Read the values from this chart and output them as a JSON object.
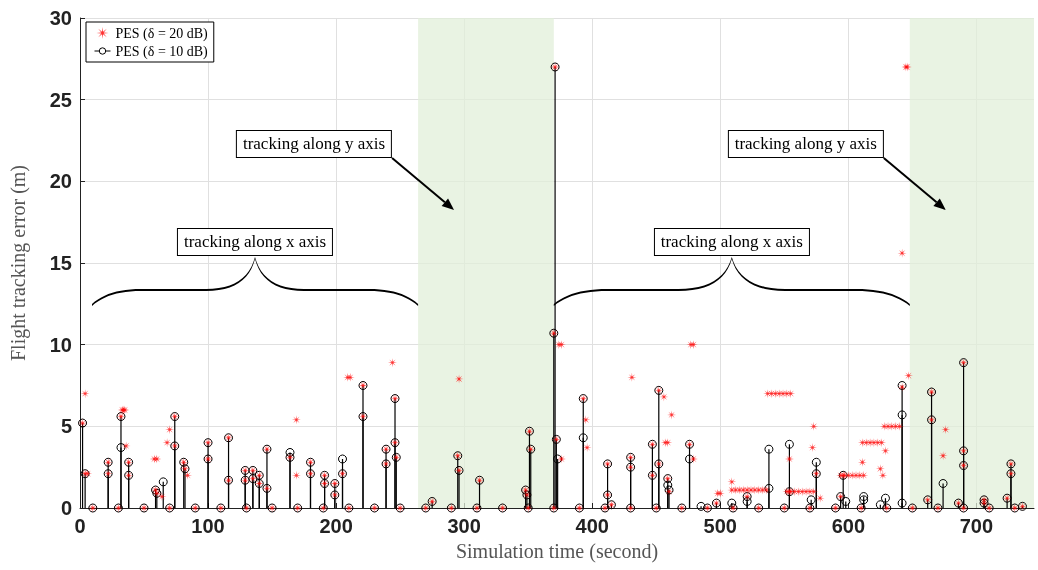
{
  "chart_data": {
    "type": "scatter",
    "xlabel": "Simulation time (second)",
    "ylabel": "Flight tracking error (m)",
    "xlim": [
      0,
      745
    ],
    "xticks": [
      0,
      100,
      200,
      300,
      400,
      500,
      600,
      700
    ],
    "ylim": [
      0,
      30
    ],
    "yticks": [
      0,
      5,
      10,
      15,
      20,
      25,
      30
    ],
    "grid": true,
    "legend": "top left",
    "series": [
      {
        "name": "PES (δ = 20 dB)",
        "marker": "star",
        "color": "#ff0000",
        "x": [
          2,
          4,
          22,
          22,
          32,
          38,
          38,
          59,
          60,
          74,
          74,
          81,
          82,
          100,
          100,
          116,
          116,
          129,
          129,
          135,
          135,
          140,
          140,
          146,
          146,
          164,
          180,
          180,
          191,
          191,
          199,
          199,
          205,
          221,
          221,
          239,
          239,
          246,
          246,
          247,
          275,
          295,
          296,
          312,
          348,
          349,
          351,
          352,
          370,
          371,
          372,
          393,
          412,
          412,
          415,
          430,
          430,
          447,
          447,
          452,
          452,
          459,
          476,
          497,
          521,
          554,
          575,
          596,
          662,
          665,
          665,
          686,
          690,
          690,
          690,
          706,
          706,
          724,
          727,
          727,
          736,
          4,
          6,
          33,
          34,
          35,
          36,
          58,
          60,
          64,
          68,
          70,
          84,
          169,
          169,
          209,
          211,
          244,
          296,
          374,
          376,
          376,
          395,
          396,
          431,
          456,
          462,
          457,
          459,
          460,
          477,
          479,
          479,
          498,
          500,
          509,
          509,
          512,
          515,
          518,
          521,
          524,
          527,
          530,
          533,
          536,
          537,
          540,
          543,
          546,
          549,
          552,
          555,
          554,
          552,
          555,
          558,
          561,
          564,
          567,
          570,
          573,
          573,
          572,
          578,
          594,
          597,
          600,
          603,
          606,
          609,
          612,
          594,
          611,
          611,
          614,
          617,
          620,
          623,
          626,
          629,
          625,
          627,
          628,
          631,
          634,
          637,
          640,
          642,
          647,
          645,
          646,
          642,
          676,
          674,
          10,
          30,
          50,
          70,
          90,
          110,
          130,
          150,
          170,
          190,
          210,
          230,
          250,
          270,
          290,
          310,
          330,
          350,
          370,
          390,
          410,
          430,
          450,
          470,
          490,
          510,
          530,
          550,
          570,
          590,
          610,
          630,
          650,
          670,
          690,
          710,
          730
        ],
        "values": [
          5.2,
          2.1,
          2.8,
          2.1,
          5.6,
          2.8,
          2.0,
          1.1,
          0.9,
          5.6,
          3.8,
          2.8,
          2.4,
          4.0,
          3.0,
          4.3,
          1.7,
          2.3,
          1.7,
          2.3,
          1.8,
          2.0,
          1.5,
          3.6,
          1.2,
          3.1,
          2.8,
          2.1,
          2.0,
          1.5,
          1.5,
          0.8,
          2.1,
          7.5,
          5.6,
          3.6,
          2.7,
          6.7,
          4.0,
          3.1,
          0.4,
          3.2,
          2.3,
          1.7,
          1.1,
          0.8,
          4.7,
          3.6,
          10.7,
          27.0,
          4.2,
          6.7,
          2.7,
          0.8,
          0.2,
          3.1,
          2.5,
          3.9,
          2.0,
          7.2,
          2.7,
          1.8,
          3.9,
          0.3,
          0.7,
          1.0,
          2.1,
          2.0,
          0.5,
          7.1,
          5.4,
          0.3,
          8.9,
          3.5,
          2.6,
          0.5,
          0.3,
          0.6,
          2.7,
          2.1,
          0.1,
          7.0,
          2.1,
          6.0,
          6.0,
          6.0,
          3.8,
          3.0,
          3.0,
          0.7,
          4.0,
          4.8,
          2.0,
          5.4,
          2.0,
          8.0,
          8.0,
          8.9,
          7.9,
          10.0,
          10.0,
          3.0,
          5.4,
          3.7,
          8.0,
          6.8,
          5.7,
          4.0,
          4.0,
          1.0,
          10.0,
          10.0,
          3.0,
          0.9,
          0.9,
          1.6,
          1.1,
          1.1,
          1.1,
          1.1,
          1.1,
          1.1,
          1.1,
          1.1,
          1.1,
          1.1,
          7.0,
          7.0,
          7.0,
          7.0,
          7.0,
          7.0,
          7.0,
          3.0,
          1.0,
          1.0,
          1.0,
          1.0,
          1.0,
          1.0,
          1.0,
          1.0,
          5.0,
          3.7,
          0.6,
          2.0,
          2.0,
          2.0,
          2.0,
          2.0,
          2.0,
          2.0,
          0.7,
          2.8,
          4.0,
          4.0,
          4.0,
          4.0,
          4.0,
          4.0,
          3.5,
          2.4,
          2.0,
          5.0,
          5.0,
          5.0,
          5.0,
          5.0,
          7.4,
          8.1,
          27.0,
          27.0,
          15.6,
          4.8,
          3.2,
          0,
          0,
          0,
          0,
          0,
          0,
          0,
          0,
          0,
          0,
          0,
          0,
          0,
          0,
          0,
          0,
          0,
          0,
          0,
          0,
          0,
          0,
          0,
          0,
          0,
          0,
          0,
          0,
          0,
          0,
          0,
          0,
          0,
          0,
          0,
          0,
          0
        ]
      },
      {
        "name": "PES (δ = 10 dB)",
        "type": "lollipop",
        "marker": "circle",
        "color": "#000000",
        "x": [
          2,
          4,
          22,
          22,
          32,
          32,
          38,
          38,
          59,
          60,
          65,
          74,
          74,
          81,
          82,
          100,
          100,
          116,
          116,
          129,
          129,
          135,
          135,
          140,
          140,
          146,
          146,
          164,
          164,
          180,
          180,
          191,
          191,
          199,
          199,
          205,
          205,
          221,
          221,
          239,
          239,
          246,
          246,
          247,
          275,
          295,
          296,
          312,
          348,
          349,
          351,
          352,
          370,
          371,
          372,
          373,
          393,
          393,
          412,
          412,
          415,
          430,
          430,
          447,
          447,
          452,
          452,
          459,
          459,
          460,
          476,
          476,
          485,
          497,
          509,
          521,
          521,
          538,
          538,
          554,
          554,
          571,
          575,
          575,
          594,
          596,
          598,
          612,
          612,
          625,
          629,
          642,
          642,
          642,
          662,
          665,
          665,
          674,
          686,
          690,
          690,
          690,
          706,
          706,
          724,
          727,
          727,
          736,
          10,
          30,
          50,
          70,
          90,
          110,
          130,
          150,
          170,
          190,
          210,
          230,
          250,
          270,
          290,
          310,
          330,
          350,
          370,
          390,
          410,
          430,
          450,
          470,
          490,
          510,
          530,
          550,
          570,
          590,
          610,
          630,
          650,
          670,
          690,
          710,
          730
        ],
        "values": [
          5.2,
          2.1,
          2.8,
          2.1,
          5.6,
          3.7,
          2.8,
          2.0,
          1.1,
          0.9,
          1.6,
          5.6,
          3.8,
          2.8,
          2.4,
          4.0,
          3.0,
          4.3,
          1.7,
          2.3,
          1.7,
          2.3,
          1.8,
          2.0,
          1.5,
          3.6,
          1.2,
          3.4,
          3.1,
          2.8,
          2.1,
          2.0,
          1.5,
          1.5,
          0.8,
          3.0,
          2.1,
          7.5,
          5.6,
          3.6,
          2.7,
          6.7,
          4.0,
          3.1,
          0.4,
          3.2,
          2.3,
          1.7,
          1.1,
          0.8,
          4.7,
          3.6,
          10.7,
          27.0,
          4.2,
          3.0,
          6.7,
          4.3,
          2.7,
          0.8,
          0.2,
          3.1,
          2.5,
          3.9,
          2.0,
          7.2,
          2.7,
          1.8,
          1.4,
          1.1,
          3.9,
          3.0,
          0.1,
          0.3,
          0.3,
          0.7,
          0.4,
          3.6,
          1.2,
          3.9,
          1.0,
          0.5,
          2.8,
          2.1,
          0.7,
          2.0,
          0.4,
          0.7,
          0.5,
          0.2,
          0.6,
          7.5,
          5.7,
          0.3,
          0.5,
          7.1,
          5.4,
          1.5,
          0.3,
          8.9,
          3.5,
          2.6,
          0.5,
          0.3,
          0.6,
          2.7,
          2.1,
          0.1,
          0,
          0,
          0,
          0,
          0,
          0,
          0,
          0,
          0,
          0,
          0,
          0,
          0,
          0,
          0,
          0,
          0,
          0,
          0,
          0,
          0,
          0,
          0,
          0,
          0,
          0,
          0,
          0,
          0,
          0,
          0,
          0,
          0,
          0,
          0,
          0,
          0
        ]
      }
    ],
    "bands": [
      {
        "axis": "x",
        "from": 264,
        "to": 370,
        "color": "#e2efda"
      },
      {
        "axis": "x",
        "from": 648,
        "to": 745,
        "color": "#e2efda"
      }
    ],
    "annotations": [
      "tracking along x axis",
      "tracking along y axis",
      "tracking along x axis",
      "tracking along y axis"
    ]
  }
}
